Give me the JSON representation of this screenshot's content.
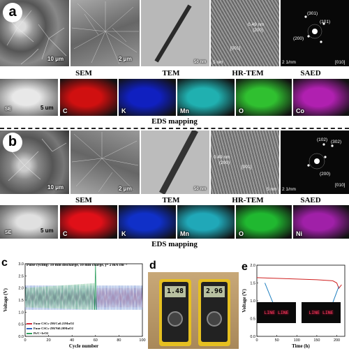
{
  "panel_a": {
    "badge": "a",
    "sem1_scale": "10 μm",
    "sem2_scale": "2 μm",
    "tem_scale": "50 nm",
    "hrtem_scale": "5 nm",
    "hrtem_spacing": "0.49 nm",
    "hrtem_plane": "(200)",
    "hrtem_dir": "[001]",
    "saed_spots": [
      "(301)",
      "(101)",
      "(200)"
    ],
    "saed_scale": "2 1/nm",
    "saed_zone": "[010]",
    "row_labels": [
      "SEM",
      "TEM",
      "HR-TEM",
      "SAED"
    ],
    "eds_se": "SE",
    "eds_scale": "5 um",
    "eds_elements": [
      "C",
      "K",
      "Mn",
      "O",
      "Co"
    ],
    "eds_colors": [
      "#d01010",
      "#1020c0",
      "#20b0b0",
      "#30c030",
      "#b020b0"
    ],
    "eds_caption": "EDS mapping"
  },
  "panel_b": {
    "badge": "b",
    "sem1_scale": "10 μm",
    "sem2_scale": "2 μm",
    "tem_scale": "50 nm",
    "hrtem_scale": "5 nm",
    "hrtem_spacing": "0.49 nm",
    "hrtem_plane": "(200)",
    "hrtem_dir": "[001]",
    "saed_spots": [
      "(102)",
      "(302)",
      "(200)"
    ],
    "saed_scale": "2 1/nm",
    "saed_zone": "[010]",
    "row_labels": [
      "SEM",
      "TEM",
      "HR-TEM",
      "SAED"
    ],
    "eds_se": "SE",
    "eds_scale": "5 um",
    "eds_elements": [
      "C",
      "K",
      "Mn",
      "O",
      "Ni"
    ],
    "eds_colors": [
      "#e01018",
      "#1030c8",
      "#20a8b8",
      "#20b830",
      "#a020a8"
    ],
    "eds_caption": "EDS mapping"
  },
  "panel_c": {
    "letter": "c",
    "title": "Pulse cycling: 10 min discharge, 10 min charge, j= 2 mA cm⁻²",
    "ylabel": "Voltage (V)",
    "xlabel": "Cycle number",
    "legend": [
      {
        "label": "Fune CSCs-2M/Co0.21MnO2",
        "color": "#d03040"
      },
      {
        "label": "Fune CSCs-2M/Ni0.20MnO2",
        "color": "#3060c0"
      },
      {
        "label": "Pt/C+IrO2",
        "color": "#30a060"
      }
    ]
  },
  "panel_d": {
    "letter": "d",
    "readings": [
      "1.48",
      "2.96"
    ]
  },
  "panel_e": {
    "letter": "e",
    "ylabel": "Voltage (V)",
    "xlabel": "Time (h)",
    "led_text": "LINE LINE"
  },
  "chart_data": [
    {
      "type": "line",
      "title": "Pulse cycling: 10 min discharge, 10 min charge, j= 2 mA cm⁻²",
      "xlabel": "Cycle number",
      "ylabel": "Voltage (V)",
      "xlim": [
        0,
        100
      ],
      "ylim": [
        0.0,
        3.0
      ],
      "x_ticks": [
        0,
        20,
        40,
        60,
        80,
        100
      ],
      "y_ticks": [
        0.0,
        0.5,
        1.0,
        1.5,
        2.0,
        2.5,
        3.0
      ],
      "series": [
        {
          "name": "Fune CSCs-2M/Co0.21MnO2",
          "x": [
            0,
            100
          ],
          "discharge": [
            1.2,
            1.2
          ],
          "charge": [
            2.0,
            2.0
          ]
        },
        {
          "name": "Fune CSCs-2M/Ni0.20MnO2",
          "x": [
            0,
            100
          ],
          "discharge": [
            1.1,
            1.1
          ],
          "charge": [
            2.1,
            2.1
          ]
        },
        {
          "name": "Pt/C+IrO2",
          "x": [
            0,
            60
          ],
          "discharge": [
            1.2,
            1.1
          ],
          "charge": [
            2.0,
            2.2
          ]
        }
      ],
      "spike": {
        "x": 60,
        "y": 3.0
      }
    },
    {
      "type": "line",
      "xlabel": "Time (h)",
      "ylabel": "Voltage (V)",
      "xlim": [
        0,
        220
      ],
      "ylim": [
        0.0,
        2.0
      ],
      "x_ticks": [
        0,
        50,
        100,
        150,
        200
      ],
      "y_ticks": [
        0.0,
        0.5,
        1.0,
        1.5,
        2.0
      ],
      "series": [
        {
          "name": "",
          "x": [
            0,
            50,
            100,
            150,
            190,
            200,
            205,
            212
          ],
          "y": [
            1.65,
            1.63,
            1.61,
            1.59,
            1.56,
            1.5,
            1.35,
            1.45
          ]
        }
      ]
    }
  ]
}
